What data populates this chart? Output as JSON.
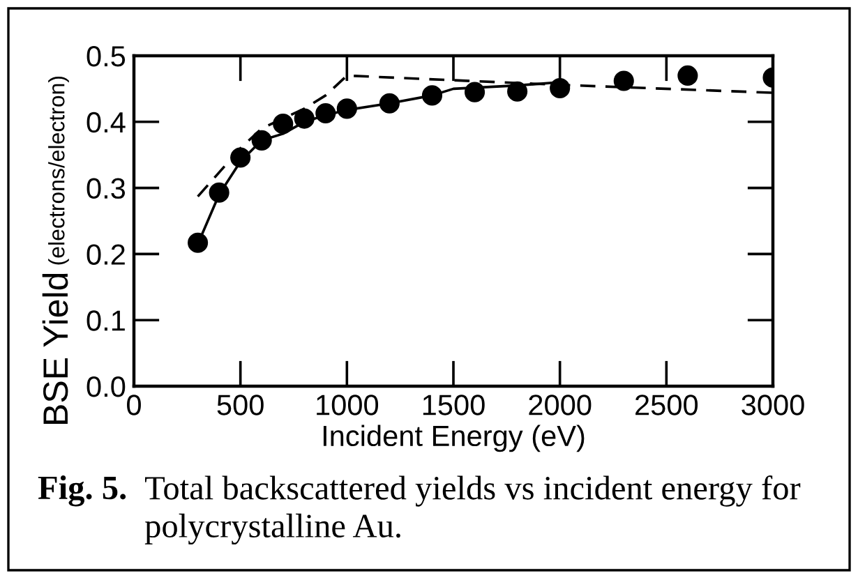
{
  "chart_data": {
    "type": "scatter",
    "xlabel": "Incident Energy (eV)",
    "ylabel": "BSE Yield (electrons/electron)",
    "xlim": [
      0,
      3000
    ],
    "xticks": [
      0,
      500,
      1000,
      1500,
      2000,
      2500,
      3000
    ],
    "ylim": [
      0,
      0.5
    ],
    "yticks": [
      {
        "value": 0,
        "label": "0.0"
      },
      0.1,
      0.2,
      0.3,
      0.4,
      0.5
    ],
    "grid": false,
    "legend": false,
    "marker": "circle",
    "series": [
      {
        "color": "#000000",
        "x": [
          300,
          400,
          500,
          600,
          700,
          800,
          900,
          1000,
          1200,
          1400,
          1600,
          1800,
          2000,
          2300,
          2600,
          3000
        ],
        "values": [
          0.217,
          0.293,
          0.346,
          0.372,
          0.397,
          0.405,
          0.413,
          0.42,
          0.428,
          0.44,
          0.445,
          0.446,
          0.451,
          0.462,
          0.47,
          0.467
        ]
      },
      {
        "type": "line",
        "color": "#000000",
        "line_style": "solid",
        "marker": "none",
        "x": [
          300,
          400,
          500,
          600,
          700,
          800,
          900,
          1000,
          1200,
          1400,
          1500,
          1800,
          2000
        ],
        "values": [
          0.215,
          0.29,
          0.34,
          0.372,
          0.382,
          0.4,
          0.41,
          0.418,
          0.428,
          0.44,
          0.45,
          0.455,
          0.46
        ]
      },
      {
        "type": "line",
        "color": "#000000",
        "line_style": "dashed",
        "marker": "none",
        "x": [
          300,
          500,
          600,
          700,
          800,
          900,
          1000,
          2000,
          3000
        ],
        "values": [
          0.287,
          0.36,
          0.39,
          0.405,
          0.42,
          0.44,
          0.47,
          0.456,
          0.444
        ]
      }
    ],
    "annotations": [
      "Fig. 5.",
      "Total backscattered yields vs incident energy for polycrystalline Au."
    ]
  }
}
